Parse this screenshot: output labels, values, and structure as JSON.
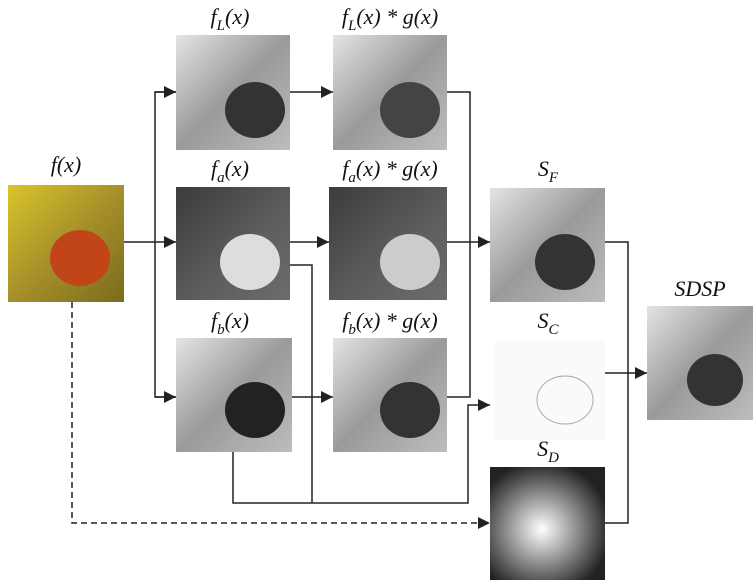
{
  "nodes": [
    {
      "label": {
        "main": "f",
        "sub": "",
        "tail": "(x)"
      }
    },
    {
      "label": {
        "main": "f",
        "sub": "L",
        "tail": "(x) * g(x)"
      }
    },
    {
      "label": {
        "main": "f",
        "sub": "L",
        "tail": "(x)"
      }
    },
    {
      "label": {
        "main": "f",
        "sub": "a",
        "tail": "(x)"
      }
    },
    {
      "label": {
        "main": "f",
        "sub": "a",
        "tail": "(x) * g(x)"
      }
    },
    {
      "label": {
        "main": "f",
        "sub": "b",
        "tail": "(x)"
      }
    },
    {
      "label": {
        "main": "f",
        "sub": "b",
        "tail": "(x) * g(x)"
      }
    },
    {
      "label": {
        "main": "S",
        "sub": "F",
        "tail": ""
      }
    },
    {
      "label": {
        "main": "S",
        "sub": "C",
        "tail": ""
      }
    },
    {
      "label": {
        "main": "S",
        "sub": "D",
        "tail": ""
      }
    },
    {
      "label": {
        "main": "SDSP",
        "sub": "",
        "tail": ""
      }
    }
  ]
}
